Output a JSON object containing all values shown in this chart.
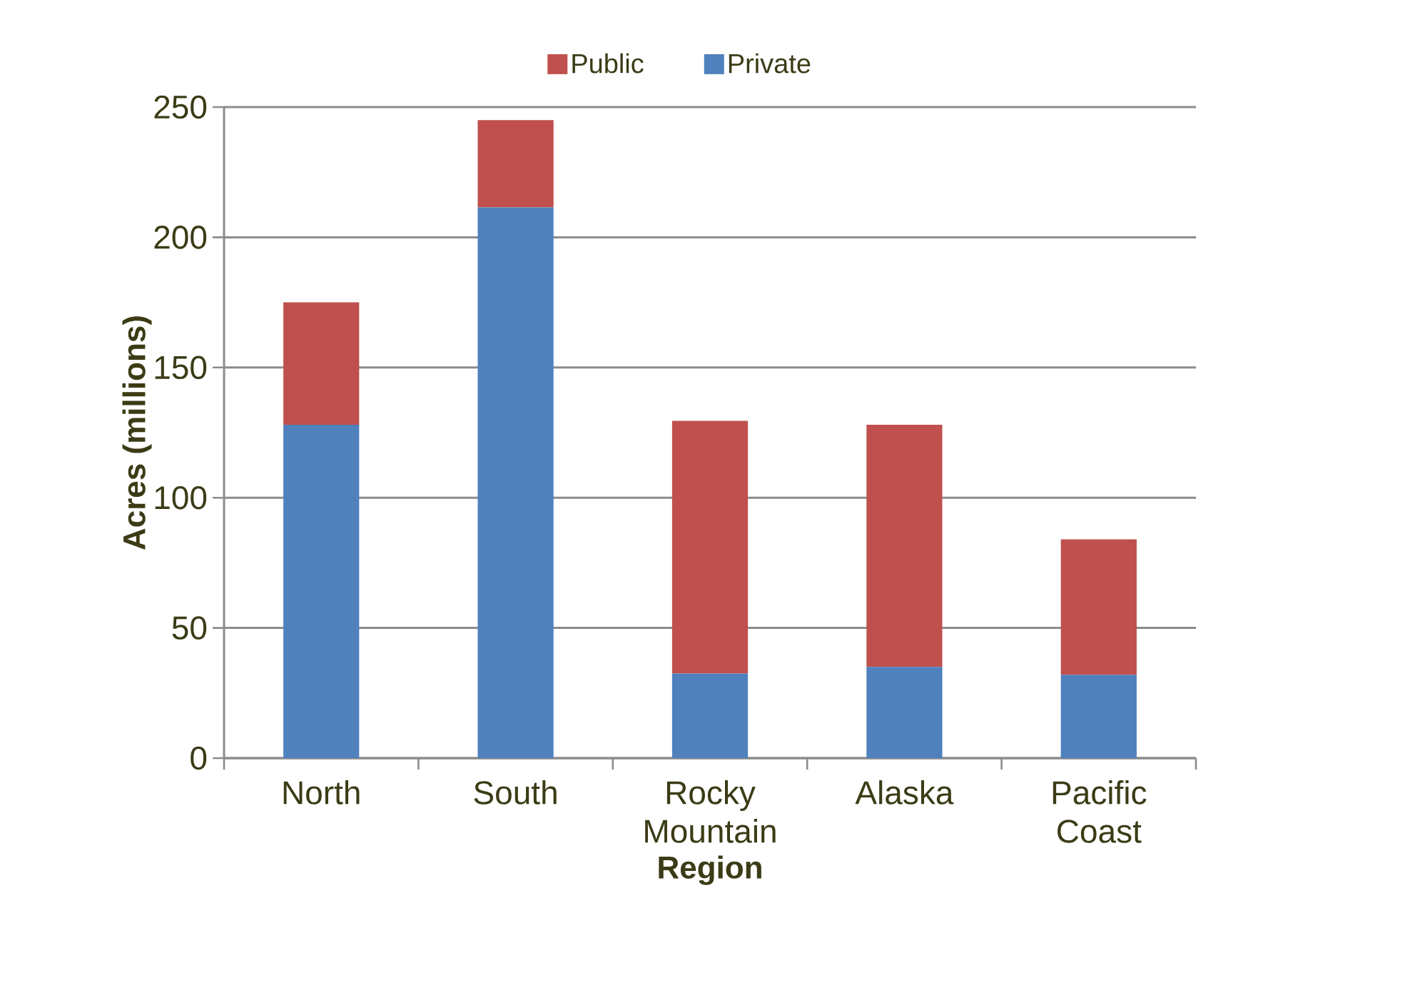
{
  "chart_data": {
    "type": "bar",
    "stacked": true,
    "xlabel": "Region",
    "ylabel": "Acres (millions)",
    "categories": [
      "North",
      "South",
      "Rocky Mountain",
      "Alaska",
      "Pacific Coast"
    ],
    "series": [
      {
        "name": "Private",
        "color": "#4f81bd",
        "values": [
          128,
          211.5,
          32.5,
          35,
          32
        ]
      },
      {
        "name": "Public",
        "color": "#c0504d",
        "values": [
          47,
          33.5,
          97,
          93,
          52
        ]
      }
    ],
    "ylim": [
      0,
      250
    ],
    "yticks": [
      0,
      50,
      100,
      150,
      200,
      250
    ],
    "grid": "y",
    "legend": "top"
  }
}
